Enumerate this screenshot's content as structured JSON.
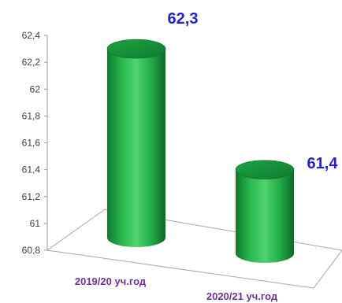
{
  "chart_data": {
    "type": "bar",
    "title": "",
    "xlabel": "",
    "ylabel": "",
    "categories": [
      "2019/20 уч.год",
      "2020/21 уч.год"
    ],
    "values": [
      62.3,
      61.4
    ],
    "data_labels": [
      "62,3",
      "61,4"
    ],
    "ylim": [
      60.8,
      62.4
    ],
    "yticks": [
      60.8,
      61,
      61.2,
      61.4,
      61.6,
      61.8,
      62,
      62.2,
      62.4
    ],
    "ytick_labels": [
      "60,8",
      "61",
      "61,2",
      "61,4",
      "61,6",
      "61,8",
      "62",
      "62,2",
      "62,4"
    ],
    "grid": false,
    "legend": "none",
    "style": "3d-cylinder",
    "bar_color": "#22b14c",
    "label_color": "#1f1fd6",
    "category_label_color": "#7030a0"
  }
}
